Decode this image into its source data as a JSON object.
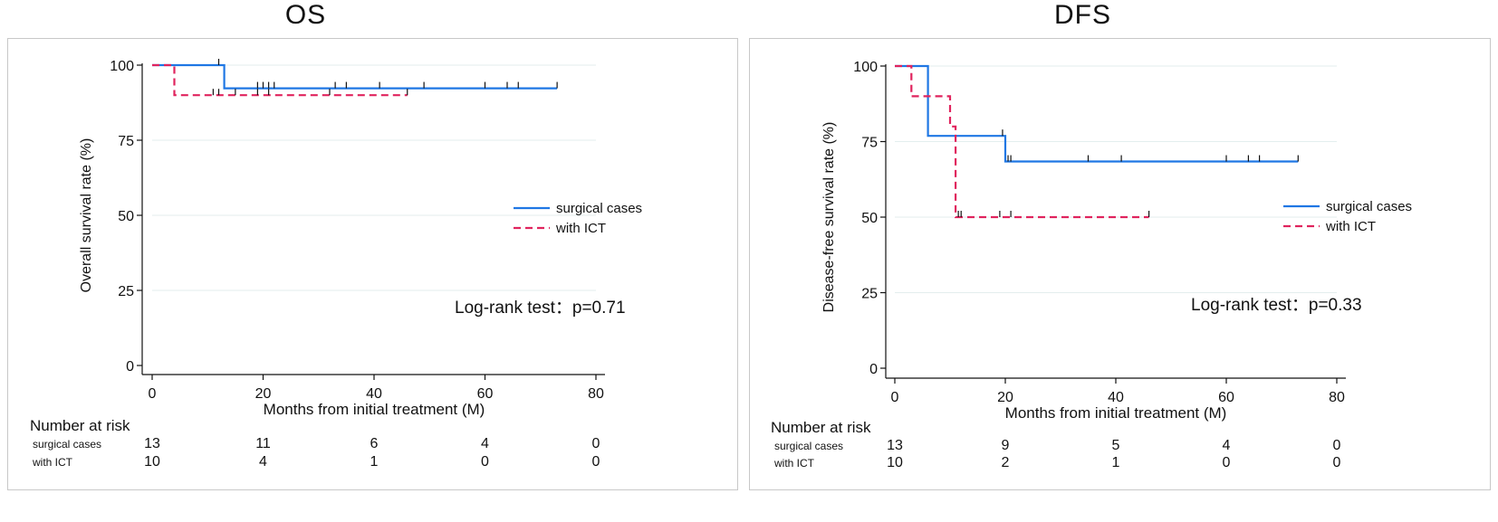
{
  "chart_data": [
    {
      "type": "line",
      "subtype": "kaplan-meier",
      "title": "OS",
      "xlabel": "Months from initial treatment (M)",
      "ylabel": "Overall survival rate (%)",
      "xlim": [
        0,
        80
      ],
      "ylim": [
        0,
        100
      ],
      "xticks": [
        "0",
        "20",
        "40",
        "60",
        "80"
      ],
      "yticks": [
        "0",
        "25",
        "50",
        "75",
        "100"
      ],
      "grid": "horizontal",
      "legend_position": "right",
      "annotation": "Log-rank test：p=0.71",
      "series": [
        {
          "name": "surgical cases",
          "color": "#1f77e4",
          "style": "solid",
          "steps": [
            [
              0,
              100
            ],
            [
              13,
              100
            ],
            [
              13,
              92.3
            ],
            [
              73,
              92.3
            ]
          ],
          "censor": [
            12,
            19,
            20,
            21,
            22,
            33,
            35,
            41,
            49,
            60,
            64,
            66,
            73
          ]
        },
        {
          "name": "with ICT",
          "color": "#e0245e",
          "style": "dashed",
          "steps": [
            [
              0,
              100
            ],
            [
              4,
              100
            ],
            [
              4,
              90
            ],
            [
              46,
              90
            ]
          ],
          "censor": [
            11,
            12,
            15,
            19,
            21,
            32,
            46
          ]
        }
      ],
      "risk_table": {
        "header": "Number at risk",
        "rows": [
          {
            "label": "surgical cases",
            "values": [
              "13",
              "11",
              "6",
              "4",
              "0"
            ]
          },
          {
            "label": "with ICT",
            "values": [
              "10",
              "4",
              "1",
              "0",
              "0"
            ]
          }
        ]
      }
    },
    {
      "type": "line",
      "subtype": "kaplan-meier",
      "title": "DFS",
      "xlabel": "Months from initial treatment (M)",
      "ylabel": "Disease-free survival rate (%)",
      "xlim": [
        0,
        80
      ],
      "ylim": [
        0,
        100
      ],
      "xticks": [
        "0",
        "20",
        "40",
        "60",
        "80"
      ],
      "yticks": [
        "0",
        "25",
        "50",
        "75",
        "100"
      ],
      "grid": "horizontal",
      "legend_position": "right",
      "annotation": "Log-rank test：p=0.33",
      "series": [
        {
          "name": "surgical cases",
          "color": "#1f77e4",
          "style": "solid",
          "steps": [
            [
              0,
              100
            ],
            [
              6,
              100
            ],
            [
              6,
              76.9
            ],
            [
              20,
              76.9
            ],
            [
              20,
              68.4
            ],
            [
              73,
              68.4
            ]
          ],
          "censor": [
            19.5,
            20.5,
            21,
            35,
            41,
            60,
            64,
            66,
            73
          ]
        },
        {
          "name": "with ICT",
          "color": "#e0245e",
          "style": "dashed",
          "steps": [
            [
              0,
              100
            ],
            [
              3,
              100
            ],
            [
              3,
              90
            ],
            [
              10,
              90
            ],
            [
              10,
              80
            ],
            [
              11,
              80
            ],
            [
              11,
              50
            ],
            [
              46,
              50
            ]
          ],
          "censor": [
            11.5,
            12,
            19,
            21,
            46
          ]
        }
      ],
      "risk_table": {
        "header": "Number at risk",
        "rows": [
          {
            "label": "surgical cases",
            "values": [
              "13",
              "9",
              "5",
              "4",
              "0"
            ]
          },
          {
            "label": "with ICT",
            "values": [
              "10",
              "2",
              "1",
              "0",
              "0"
            ]
          }
        ]
      }
    }
  ]
}
